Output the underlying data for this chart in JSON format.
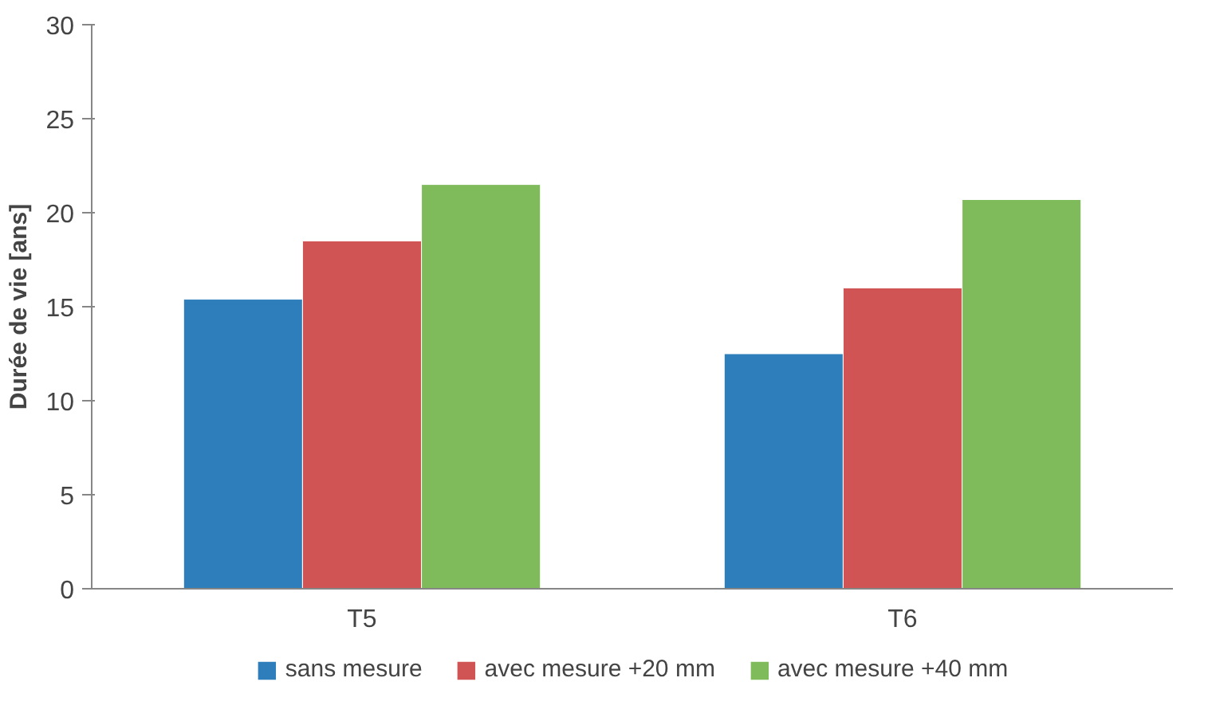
{
  "chart_data": {
    "type": "bar",
    "ylabel": "Durée de vie [ans]",
    "categories": [
      "T5",
      "T6"
    ],
    "series": [
      {
        "name": "sans mesure",
        "color": "#2e7ebb",
        "values": [
          15.4,
          12.5
        ]
      },
      {
        "name": "avec mesure +20 mm",
        "color": "#d05454",
        "values": [
          18.5,
          16.0
        ]
      },
      {
        "name": "avec mesure +40 mm",
        "color": "#7fba5b",
        "values": [
          21.5,
          20.7
        ]
      }
    ],
    "ylim": [
      0,
      30
    ],
    "yticks": [
      0,
      5,
      10,
      15,
      20,
      25,
      30
    ],
    "grid": false,
    "legend": "bottom"
  }
}
